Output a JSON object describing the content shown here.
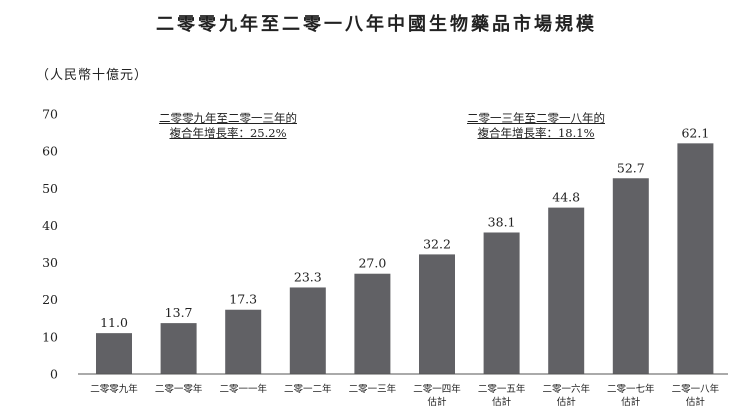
{
  "chart_data": {
    "type": "bar",
    "title": "二零零九年至二零一八年中國生物藥品市場規模",
    "ylabel": "（人民幣十億元）",
    "xlabel": "",
    "ylim": [
      0,
      70
    ],
    "yticks": [
      0,
      10,
      20,
      30,
      40,
      50,
      60,
      70
    ],
    "grid": false,
    "categories": [
      [
        "二零零九年"
      ],
      [
        "二零一零年"
      ],
      [
        "二零一一年"
      ],
      [
        "二零一二年"
      ],
      [
        "二零一三年"
      ],
      [
        "二零一四年",
        "估計"
      ],
      [
        "二零一五年",
        "估計"
      ],
      [
        "二零一六年",
        "估計"
      ],
      [
        "二零一七年",
        "估計"
      ],
      [
        "二零一八年",
        "估計"
      ]
    ],
    "values": [
      11.0,
      13.7,
      17.3,
      23.3,
      27.0,
      32.2,
      38.1,
      44.8,
      52.7,
      62.1
    ],
    "data_labels": [
      "11.0",
      "13.7",
      "17.3",
      "23.3",
      "27.0",
      "32.2",
      "38.1",
      "44.8",
      "52.7",
      "62.1"
    ],
    "bar_color": "#616165",
    "annotations": [
      {
        "line1": "二零零九年至二零一三年的",
        "line2": "複合年增長率：25.2%"
      },
      {
        "line1": "二零一三年至二零一八年的",
        "line2": "複合年增長率：18.1%"
      }
    ]
  }
}
